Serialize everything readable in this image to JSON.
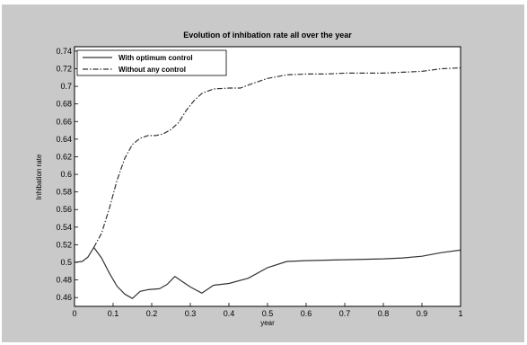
{
  "chart_data": {
    "type": "line",
    "title": "Evolution of inhibation rate all over the year",
    "xlabel": "year",
    "ylabel": "Inhibation rate",
    "xlim": [
      0,
      1
    ],
    "ylim": [
      0.45,
      0.745
    ],
    "xticks": [
      0,
      0.1,
      0.2,
      0.3,
      0.4,
      0.5,
      0.6,
      0.7,
      0.8,
      0.9,
      1
    ],
    "xtick_labels": [
      "0",
      "0.1",
      "0.2",
      "0.3",
      "0.4",
      "0.5",
      "0.6",
      "0.7",
      "0.8",
      "0.9",
      "1"
    ],
    "yticks": [
      0.46,
      0.48,
      0.5,
      0.52,
      0.54,
      0.56,
      0.58,
      0.6,
      0.62,
      0.64,
      0.66,
      0.68,
      0.7,
      0.72,
      0.74
    ],
    "ytick_labels": [
      "0.46",
      "0.48",
      "0.5",
      "0.52",
      "0.54",
      "0.56",
      "0.58",
      "0.6",
      "0.62",
      "0.64",
      "0.66",
      "0.68",
      "0.7",
      "0.72",
      "0.74"
    ],
    "grid": false,
    "legend_position": "top-left",
    "colors": {
      "background": "#c9c9c9",
      "plot_area": "#ffffff",
      "line": "#333333"
    },
    "series": [
      {
        "name": "With optimum control",
        "style": "solid",
        "x": [
          0,
          0.02,
          0.035,
          0.05,
          0.07,
          0.09,
          0.11,
          0.13,
          0.15,
          0.17,
          0.19,
          0.22,
          0.24,
          0.26,
          0.28,
          0.3,
          0.33,
          0.36,
          0.4,
          0.45,
          0.5,
          0.55,
          0.6,
          0.7,
          0.8,
          0.85,
          0.9,
          0.95,
          1
        ],
        "y": [
          0.5,
          0.501,
          0.506,
          0.517,
          0.505,
          0.488,
          0.473,
          0.464,
          0.459,
          0.467,
          0.469,
          0.47,
          0.475,
          0.484,
          0.478,
          0.472,
          0.465,
          0.474,
          0.476,
          0.482,
          0.494,
          0.501,
          0.502,
          0.503,
          0.504,
          0.505,
          0.507,
          0.511,
          0.514
        ]
      },
      {
        "name": "Without any control",
        "style": "dash-dot",
        "x": [
          0.05,
          0.07,
          0.09,
          0.11,
          0.13,
          0.15,
          0.17,
          0.19,
          0.21,
          0.23,
          0.25,
          0.27,
          0.29,
          0.31,
          0.33,
          0.36,
          0.4,
          0.43,
          0.46,
          0.5,
          0.55,
          0.6,
          0.65,
          0.7,
          0.8,
          0.85,
          0.9,
          0.95,
          1
        ],
        "y": [
          0.517,
          0.533,
          0.561,
          0.593,
          0.618,
          0.634,
          0.641,
          0.644,
          0.644,
          0.646,
          0.651,
          0.659,
          0.673,
          0.684,
          0.692,
          0.697,
          0.698,
          0.698,
          0.703,
          0.709,
          0.713,
          0.714,
          0.714,
          0.715,
          0.715,
          0.716,
          0.717,
          0.72,
          0.721
        ]
      }
    ]
  }
}
